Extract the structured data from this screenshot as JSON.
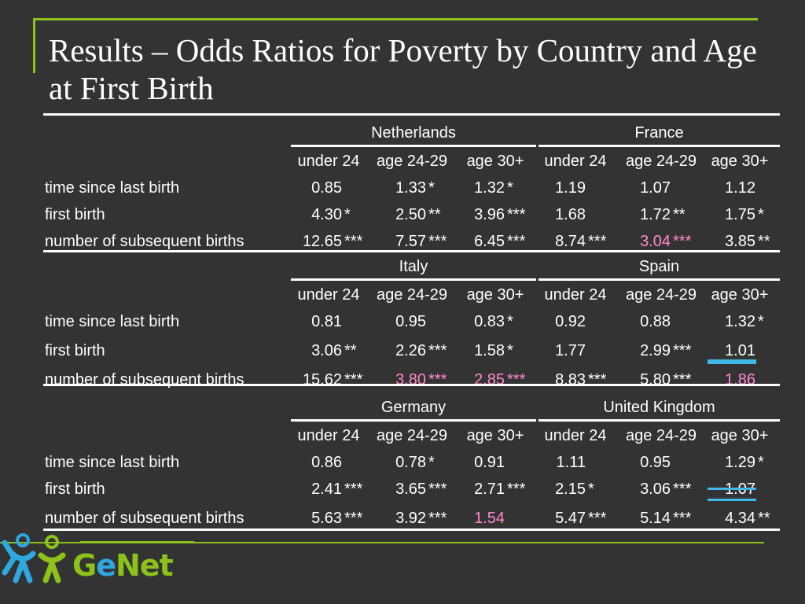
{
  "title": "Results – Odds Ratios for Poverty by Country and Age at First Birth",
  "age_headers": [
    "under 24",
    "age 24-29",
    "age 30+"
  ],
  "row_labels": [
    "time since last birth",
    "first birth",
    "number of subsequent births"
  ],
  "colors": {
    "background": "#333333",
    "accent": "#8cc21a",
    "highlight_text": "#ff88cc",
    "underline": "#40b8e8"
  },
  "blocks": [
    {
      "countries": [
        "Netherlands",
        "France"
      ],
      "rows": [
        [
          [
            "0.85",
            ""
          ],
          [
            "1.33",
            "*"
          ],
          [
            "1.32",
            "*"
          ],
          [
            "1.19",
            ""
          ],
          [
            "1.07",
            ""
          ],
          [
            "1.12",
            ""
          ]
        ],
        [
          [
            "4.30",
            "*"
          ],
          [
            "2.50",
            "**"
          ],
          [
            "3.96",
            "***"
          ],
          [
            "1.68",
            ""
          ],
          [
            "1.72",
            "**"
          ],
          [
            "1.75",
            "*"
          ]
        ],
        [
          [
            "12.65",
            "***"
          ],
          [
            "7.57",
            "***"
          ],
          [
            "6.45",
            "***"
          ],
          [
            "8.74",
            "***"
          ],
          [
            "3.04",
            "***"
          ],
          [
            "3.85",
            "**"
          ]
        ]
      ]
    },
    {
      "countries": [
        "Italy",
        "Spain"
      ],
      "rows": [
        [
          [
            "0.81",
            ""
          ],
          [
            "0.95",
            ""
          ],
          [
            "0.83",
            "*"
          ],
          [
            "0.92",
            ""
          ],
          [
            "0.88",
            ""
          ],
          [
            "1.32",
            "*"
          ]
        ],
        [
          [
            "3.06",
            "**"
          ],
          [
            "2.26",
            "***"
          ],
          [
            "1.58",
            "*"
          ],
          [
            "1.77",
            ""
          ],
          [
            "2.99",
            "***"
          ],
          [
            "1.01",
            ""
          ]
        ],
        [
          [
            "15.62",
            "***"
          ],
          [
            "3.80",
            "***"
          ],
          [
            "2.85",
            "***"
          ],
          [
            "8.83",
            "***"
          ],
          [
            "5.80",
            "***"
          ],
          [
            "1.86",
            ""
          ]
        ]
      ]
    },
    {
      "countries": [
        "Germany",
        "United Kingdom"
      ],
      "rows": [
        [
          [
            "0.86",
            ""
          ],
          [
            "0.78",
            "*"
          ],
          [
            "0.91",
            ""
          ],
          [
            "1.11",
            ""
          ],
          [
            "0.95",
            ""
          ],
          [
            "1.29",
            "*"
          ]
        ],
        [
          [
            "2.41",
            "***"
          ],
          [
            "3.65",
            "***"
          ],
          [
            "2.71",
            "***"
          ],
          [
            "2.15",
            "*"
          ],
          [
            "3.06",
            "***"
          ],
          [
            "1.07",
            ""
          ]
        ],
        [
          [
            "5.63",
            "***"
          ],
          [
            "3.92",
            "***"
          ],
          [
            "1.54",
            ""
          ],
          [
            "5.47",
            "***"
          ],
          [
            "5.14",
            "***"
          ],
          [
            "4.34",
            "**"
          ]
        ]
      ]
    }
  ],
  "logo": {
    "icon": "genet-people-icon",
    "prefix": "G",
    "e_letter": "e",
    "suffix": "Net"
  }
}
